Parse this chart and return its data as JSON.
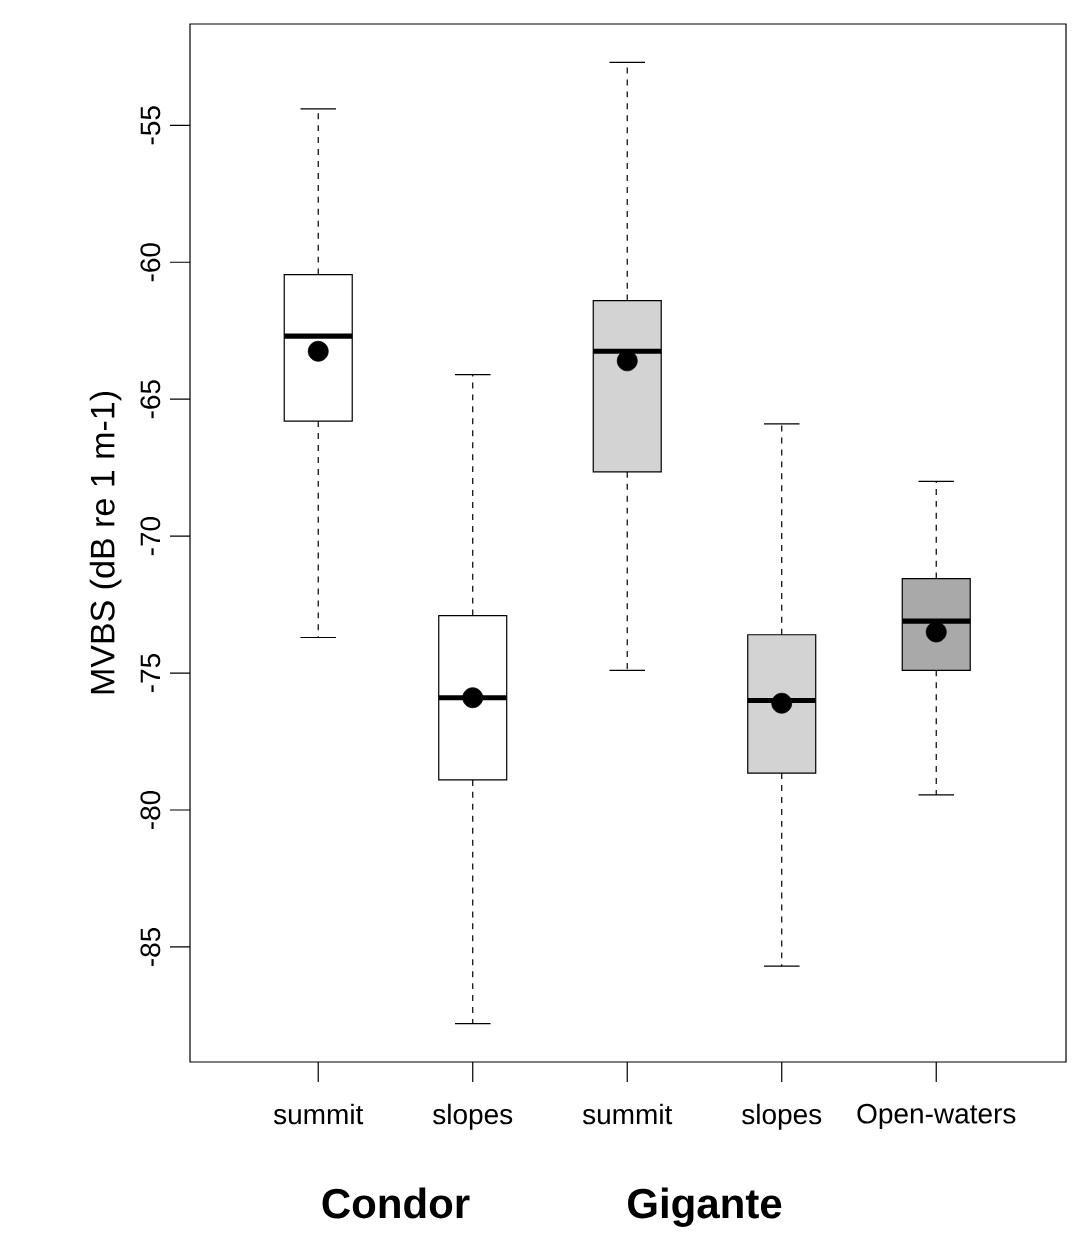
{
  "chart_data": {
    "type": "box",
    "ylabel": "MVBS (dB re 1 m-1)",
    "categories": [
      "summit",
      "slopes",
      "summit",
      "slopes",
      "Open-waters"
    ],
    "colors": [
      "#ffffff",
      "#ffffff",
      "#d3d3d3",
      "#d3d3d3",
      "#a9a9a9"
    ],
    "boxes": [
      {
        "low": -73.7,
        "q1": -65.8,
        "median": -62.7,
        "q3": -60.45,
        "high": -54.4,
        "mean": -63.25
      },
      {
        "low": -87.8,
        "q1": -78.9,
        "median": -75.9,
        "q3": -72.9,
        "high": -64.1,
        "mean": -75.9
      },
      {
        "low": -74.9,
        "q1": -67.65,
        "median": -63.25,
        "q3": -61.4,
        "high": -52.7,
        "mean": -63.6
      },
      {
        "low": -85.7,
        "q1": -78.65,
        "median": -76.0,
        "q3": -73.6,
        "high": -65.9,
        "mean": -76.1
      },
      {
        "low": -79.45,
        "q1": -74.9,
        "median": -73.1,
        "q3": -71.55,
        "high": -68.0,
        "mean": -73.5
      }
    ],
    "ylim": [
      -89.2,
      -51.3
    ],
    "yticks": [
      -85,
      -80,
      -75,
      -70,
      -65,
      -60,
      -55
    ],
    "annotations": [
      "**Condor**",
      "**Gigante**"
    ]
  }
}
